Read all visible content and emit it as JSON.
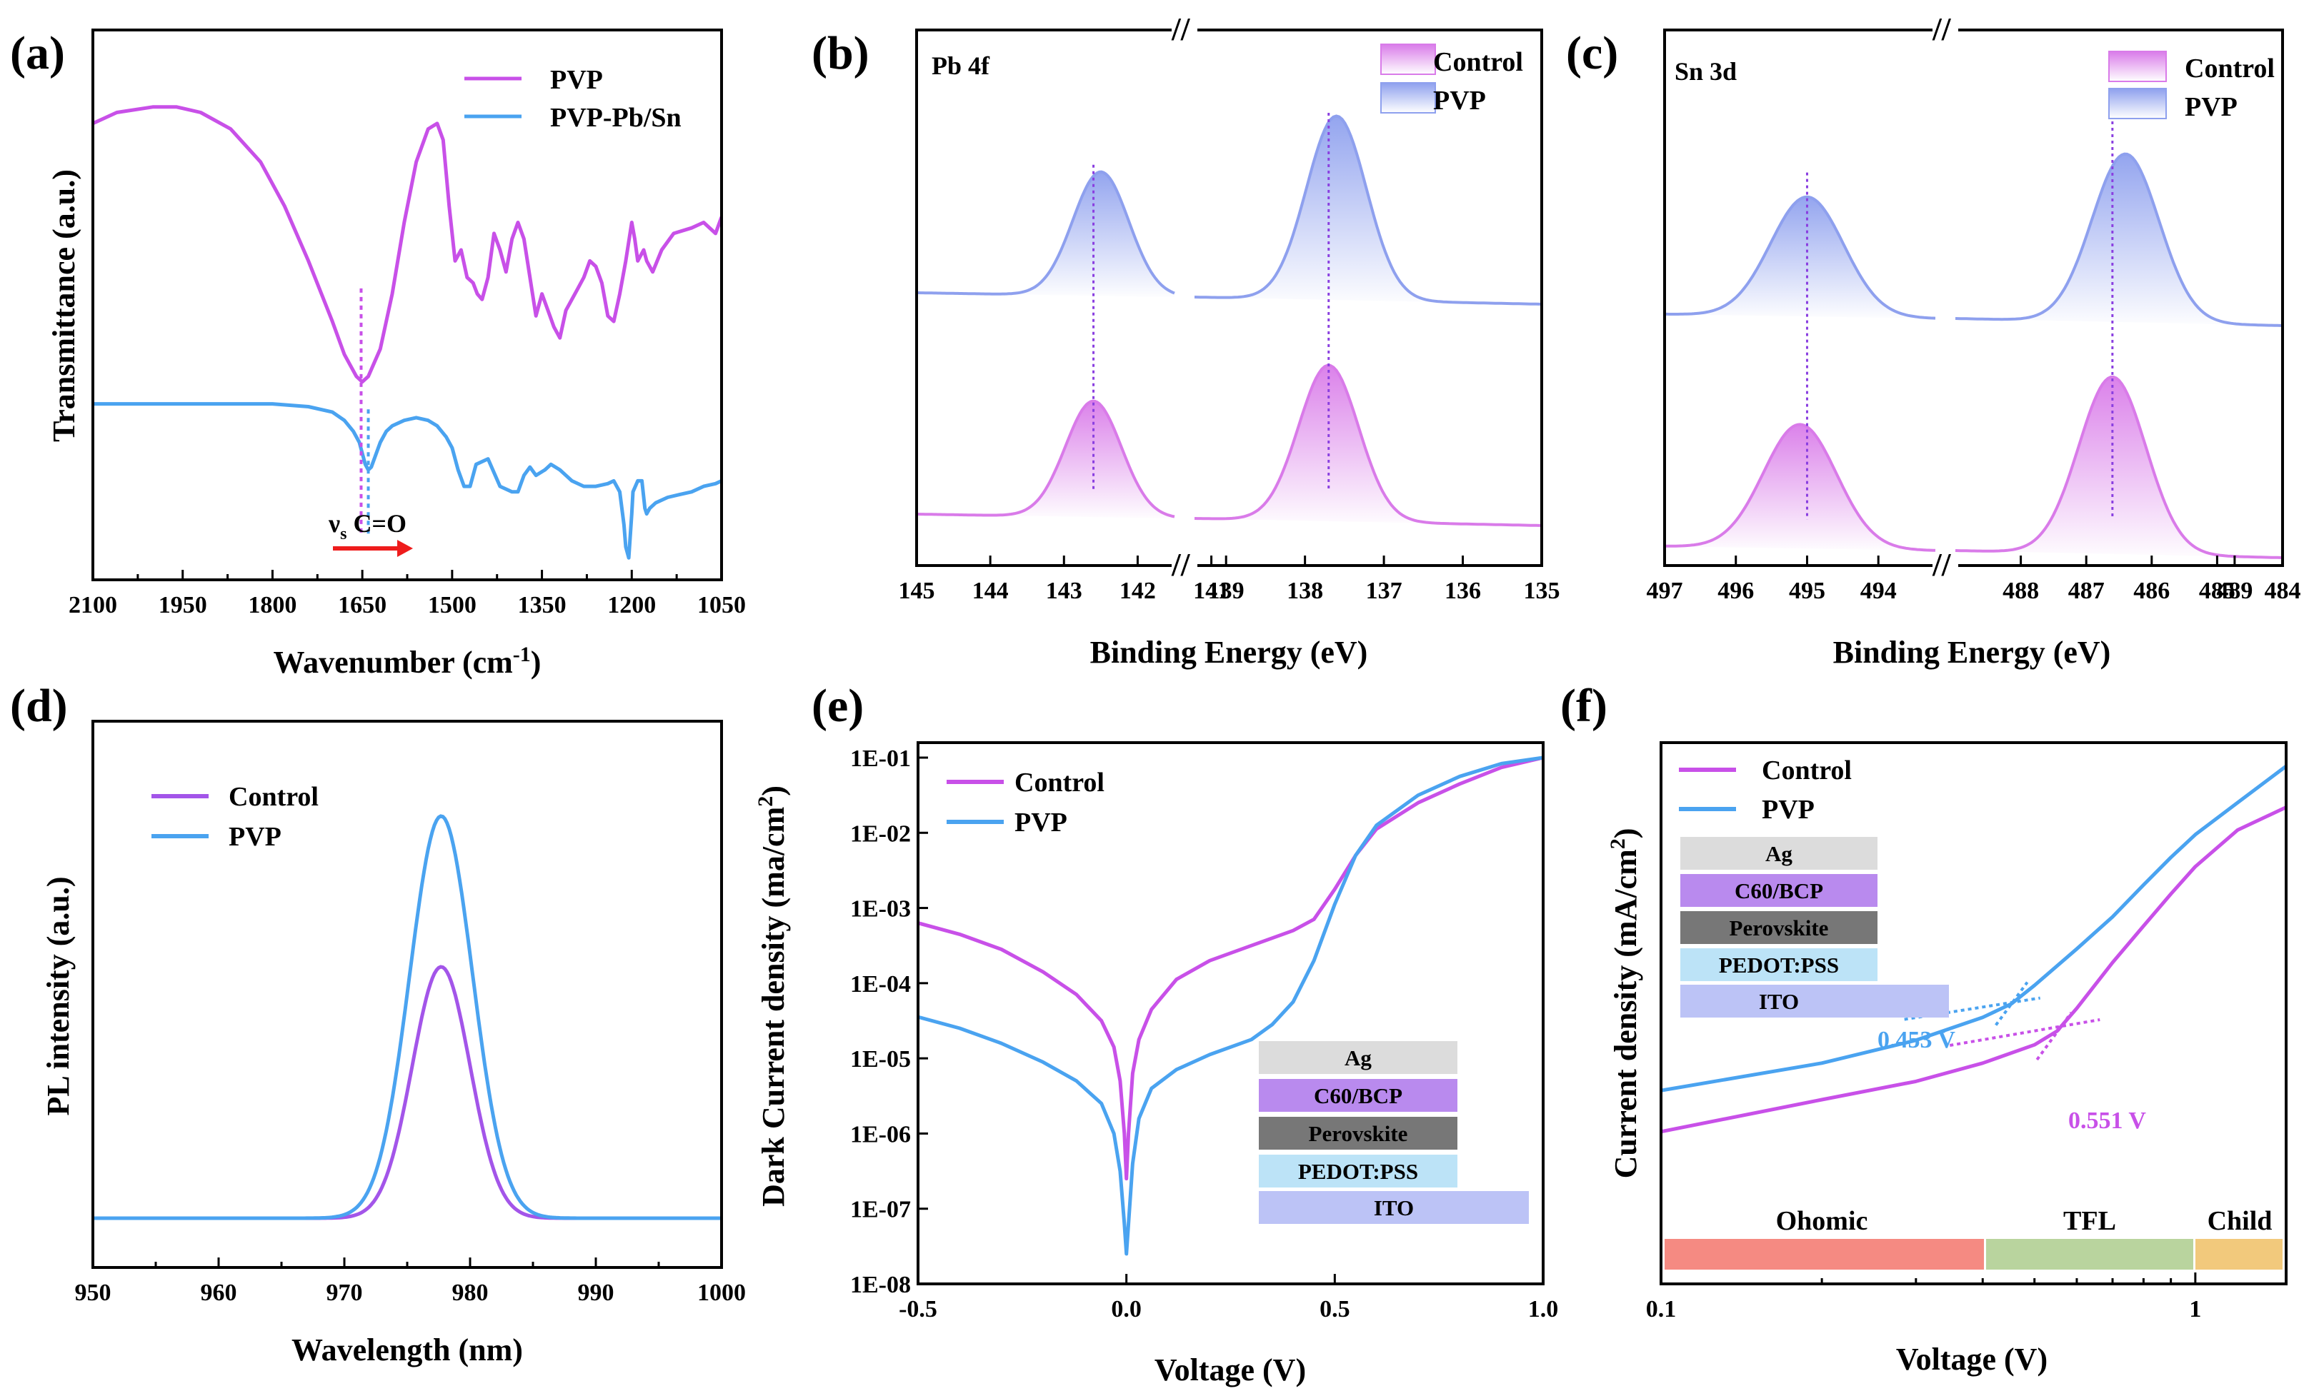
{
  "colors": {
    "magenta": "#C850E8",
    "blue": "#4AA3F0",
    "purple": "#A355E9",
    "xps_blue": "#8EA0EE",
    "xps_pink": "#D97BE9",
    "ohmic": "#F58A82",
    "tfl": "#B9D49E",
    "child": "#F2C97C"
  },
  "chart_data": [
    {
      "panel": "(a)",
      "type": "line",
      "xlabel": "Wavenumber (cm",
      "xlabel_sup": "-1",
      "xlabel_end": ")",
      "ylabel": "Transmittance (a.u.)",
      "xlim": [
        2100,
        1050
      ],
      "xticks": [
        "2100",
        "1950",
        "1800",
        "1650",
        "1500",
        "1350",
        "1200",
        "1050"
      ],
      "ylim": [
        0,
        100
      ],
      "legend": [
        "PVP",
        "PVP-Pb/Sn"
      ],
      "annotation_main": "ν",
      "annotation_sub": "s",
      "annotation_rest": " C=O",
      "series": [
        {
          "name": "PVP",
          "x": [
            2100,
            2060,
            2000,
            1960,
            1920,
            1870,
            1820,
            1780,
            1740,
            1700,
            1680,
            1660,
            1650,
            1640,
            1620,
            1600,
            1580,
            1560,
            1540,
            1525,
            1515,
            1505,
            1495,
            1485,
            1475,
            1465,
            1458,
            1450,
            1440,
            1430,
            1420,
            1410,
            1400,
            1390,
            1380,
            1370,
            1360,
            1350,
            1340,
            1330,
            1320,
            1310,
            1300,
            1290,
            1280,
            1270,
            1260,
            1250,
            1240,
            1230,
            1220,
            1210,
            1200,
            1195,
            1190,
            1180,
            1175,
            1165,
            1150,
            1130,
            1100,
            1080,
            1060,
            1050
          ],
          "y": [
            83,
            85,
            86,
            86,
            85,
            82,
            76,
            68,
            58,
            47,
            41,
            37,
            36,
            37,
            42,
            52,
            65,
            76,
            82,
            83,
            80,
            68,
            58,
            60,
            55,
            54,
            52,
            51,
            55,
            63,
            60,
            56,
            62,
            65,
            62,
            55,
            48,
            52,
            49,
            46,
            44,
            49,
            51,
            53,
            55,
            58,
            57,
            54,
            48,
            47,
            52,
            58,
            65,
            62,
            58,
            60,
            58,
            56,
            60,
            63,
            64,
            65,
            63,
            66
          ]
        },
        {
          "name": "PVP-Pb/Sn",
          "x": [
            2100,
            2000,
            1900,
            1800,
            1740,
            1700,
            1680,
            1665,
            1655,
            1650,
            1645,
            1640,
            1635,
            1630,
            1620,
            1610,
            1600,
            1580,
            1560,
            1540,
            1525,
            1510,
            1500,
            1490,
            1480,
            1470,
            1460,
            1440,
            1420,
            1400,
            1390,
            1380,
            1370,
            1360,
            1345,
            1335,
            1320,
            1310,
            1300,
            1280,
            1260,
            1240,
            1230,
            1220,
            1213,
            1210,
            1205,
            1200,
            1198,
            1190,
            1183,
            1178,
            1175,
            1170,
            1160,
            1140,
            1120,
            1100,
            1080,
            1060,
            1050
          ],
          "y": [
            32,
            32,
            32,
            32,
            31.5,
            30.5,
            29,
            27,
            25,
            23,
            21,
            20,
            20.5,
            22,
            25,
            27,
            28,
            29,
            29.5,
            29,
            28,
            26,
            24,
            20,
            17,
            17,
            21,
            22,
            17,
            16,
            16,
            19,
            20.5,
            19,
            20,
            21,
            20,
            19,
            18,
            17,
            17,
            17.5,
            18,
            16,
            10,
            6,
            4,
            12,
            16,
            18,
            18,
            13,
            12,
            13,
            14,
            15,
            15.5,
            16,
            17,
            17.5,
            18
          ]
        }
      ],
      "markers": [
        1652,
        1640
      ]
    },
    {
      "panel": "(b)",
      "type": "area",
      "inner_title": "Pb 4f",
      "xlabel": "Binding Energy (eV)",
      "xlim": [
        145,
        135
      ],
      "xticks": [
        "145",
        "144",
        "143",
        "142",
        "141",
        "139",
        "138",
        "137",
        "136",
        "135"
      ],
      "axis_break": "//",
      "legend": [
        "Control",
        "PVP"
      ],
      "series": [
        {
          "name": "PVP",
          "peaks": [
            {
              "center": 142.5,
              "height": 31
            },
            {
              "center": 137.6,
              "height": 46
            }
          ]
        },
        {
          "name": "Control",
          "peaks": [
            {
              "center": 142.6,
              "height": 29
            },
            {
              "center": 137.7,
              "height": 39
            }
          ]
        }
      ],
      "markers": [
        142.6,
        137.7
      ]
    },
    {
      "panel": "(c)",
      "type": "area",
      "inner_title": "Sn 3d",
      "xlabel": "Binding Energy (eV)",
      "xlim": [
        497,
        484
      ],
      "xticks": [
        "497",
        "496",
        "495",
        "494",
        "489",
        "488",
        "487",
        "486",
        "485",
        "484"
      ],
      "axis_break": "//",
      "legend": [
        "Control",
        "PVP"
      ],
      "series": [
        {
          "name": "PVP",
          "peaks": [
            {
              "center": 495.0,
              "height": 27
            },
            {
              "center": 486.4,
              "height": 38
            }
          ]
        },
        {
          "name": "Control",
          "peaks": [
            {
              "center": 495.1,
              "height": 28
            },
            {
              "center": 486.6,
              "height": 40
            }
          ]
        }
      ],
      "markers": [
        495.0,
        486.6
      ]
    },
    {
      "panel": "(d)",
      "type": "line",
      "xlabel": "Wavelength (nm)",
      "ylabel": "PL intensity (a.u.)",
      "xlim": [
        950,
        1000
      ],
      "xticks": [
        "950",
        "960",
        "970",
        "980",
        "990",
        "1000"
      ],
      "legend": [
        "Control",
        "PVP"
      ],
      "series": [
        {
          "name": "Control",
          "center": 977.7,
          "sigma": 2.3,
          "peak": 0.55
        },
        {
          "name": "PVP",
          "center": 977.7,
          "sigma": 2.5,
          "peak": 0.88
        }
      ]
    },
    {
      "panel": "(e)",
      "type": "line",
      "xlabel": "Voltage (V)",
      "ylabel": "Dark Current density (ma/cm",
      "ylabel_sup": "2",
      "ylabel_end": ")",
      "xlim": [
        -0.5,
        1.0
      ],
      "xticks": [
        "-0.5",
        "0.0",
        "0.5",
        "1.0"
      ],
      "ylim_log10": [
        -8,
        -1
      ],
      "yticks": [
        "1E-08",
        "1E-07",
        "1E-06",
        "1E-05",
        "1E-04",
        "1E-03",
        "1E-02",
        "1E-01"
      ],
      "legend": [
        "Control",
        "PVP"
      ],
      "stack": [
        "Ag",
        "C60/BCP",
        "Perovskite",
        "PEDOT:PSS",
        "ITO"
      ],
      "series": [
        {
          "name": "Control",
          "x": [
            -0.5,
            -0.4,
            -0.3,
            -0.2,
            -0.12,
            -0.06,
            -0.03,
            -0.015,
            -0.005,
            0,
            0.005,
            0.015,
            0.03,
            0.06,
            0.12,
            0.2,
            0.3,
            0.4,
            0.45,
            0.5,
            0.55,
            0.6,
            0.7,
            0.8,
            0.9,
            1.0
          ],
          "log10": [
            -3.2,
            -3.35,
            -3.55,
            -3.85,
            -4.15,
            -4.5,
            -4.85,
            -5.3,
            -6.0,
            -6.6,
            -6.0,
            -5.2,
            -4.75,
            -4.35,
            -3.95,
            -3.7,
            -3.5,
            -3.3,
            -3.15,
            -2.75,
            -2.3,
            -1.95,
            -1.6,
            -1.35,
            -1.13,
            -1.0
          ]
        },
        {
          "name": "PVP",
          "x": [
            -0.5,
            -0.4,
            -0.3,
            -0.2,
            -0.12,
            -0.06,
            -0.03,
            -0.015,
            -0.005,
            0,
            0.005,
            0.015,
            0.03,
            0.06,
            0.12,
            0.2,
            0.3,
            0.35,
            0.4,
            0.45,
            0.5,
            0.55,
            0.6,
            0.7,
            0.8,
            0.9,
            1.0
          ],
          "log10": [
            -4.45,
            -4.6,
            -4.8,
            -5.05,
            -5.3,
            -5.6,
            -6.0,
            -6.5,
            -7.2,
            -7.6,
            -7.2,
            -6.4,
            -5.8,
            -5.4,
            -5.15,
            -4.95,
            -4.75,
            -4.55,
            -4.25,
            -3.7,
            -2.95,
            -2.3,
            -1.9,
            -1.5,
            -1.25,
            -1.08,
            -1.0
          ]
        }
      ]
    },
    {
      "panel": "(f)",
      "type": "line",
      "xlabel": "Voltage (V)",
      "ylabel": "Current density (mA/cm",
      "ylabel_sup": "2",
      "ylabel_end": ")",
      "xlim_log10": [
        -1,
        0.17
      ],
      "xticks": [
        "0.1",
        "1"
      ],
      "legend": [
        "Control",
        "PVP"
      ],
      "stack": [
        "Ag",
        "C60/BCP",
        "Perovskite",
        "PEDOT:PSS",
        "ITO"
      ],
      "annotations": [
        "0.453 V",
        "0.551 V"
      ],
      "regions": [
        "Ohomic",
        "TFL",
        "Child"
      ],
      "series": [
        {
          "name": "Control",
          "x": [
            0.1,
            0.2,
            0.3,
            0.4,
            0.5,
            0.551,
            0.6,
            0.7,
            0.8,
            0.9,
            1.0,
            1.2,
            1.48
          ],
          "y": [
            0.18,
            0.25,
            0.29,
            0.33,
            0.37,
            0.4,
            0.45,
            0.55,
            0.63,
            0.7,
            0.76,
            0.84,
            0.89
          ]
        },
        {
          "name": "PVP",
          "x": [
            0.1,
            0.2,
            0.3,
            0.4,
            0.453,
            0.5,
            0.6,
            0.7,
            0.8,
            0.9,
            1.0,
            1.2,
            1.48
          ],
          "y": [
            0.27,
            0.33,
            0.38,
            0.43,
            0.46,
            0.5,
            0.58,
            0.65,
            0.72,
            0.78,
            0.83,
            0.9,
            0.98
          ]
        }
      ]
    }
  ]
}
